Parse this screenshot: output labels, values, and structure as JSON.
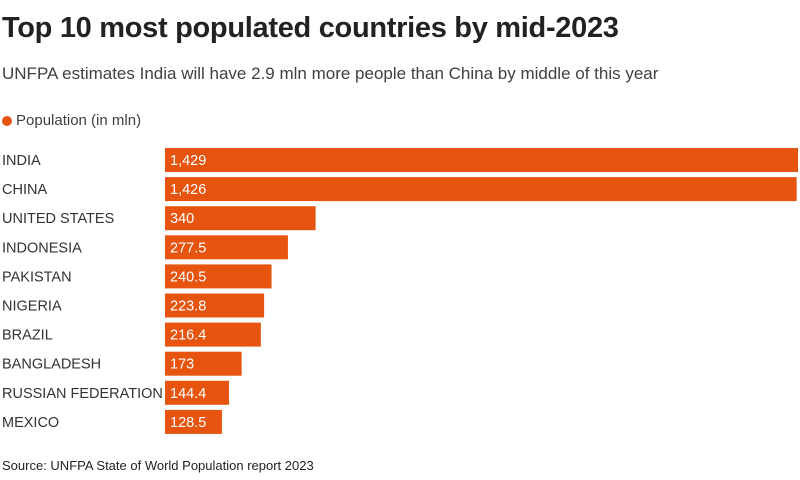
{
  "title": "Top 10 most populated countries by mid-2023",
  "subtitle": "UNFPA estimates India will have 2.9 mln more people than China by middle of this year",
  "source": "Source: UNFPA State of World Population report 2023",
  "colors": {
    "bar": "#e6540f"
  },
  "chart_data": {
    "type": "bar",
    "orientation": "horizontal",
    "legend": {
      "label": "Population (in mln)",
      "position": "top-left"
    },
    "categories": [
      "INDIA",
      "CHINA",
      "UNITED STATES",
      "INDONESIA",
      "PAKISTAN",
      "NIGERIA",
      "BRAZIL",
      "BANGLADESH",
      "RUSSIAN FEDERATION",
      "MEXICO"
    ],
    "values": [
      1429,
      1426,
      340,
      277.5,
      240.5,
      223.8,
      216.4,
      173,
      144.4,
      128.5
    ],
    "labels": [
      "1,429",
      "1,426",
      "340",
      "277.5",
      "240.5",
      "223.8",
      "216.4",
      "173",
      "144.4",
      "128.5"
    ],
    "grid": false
  }
}
